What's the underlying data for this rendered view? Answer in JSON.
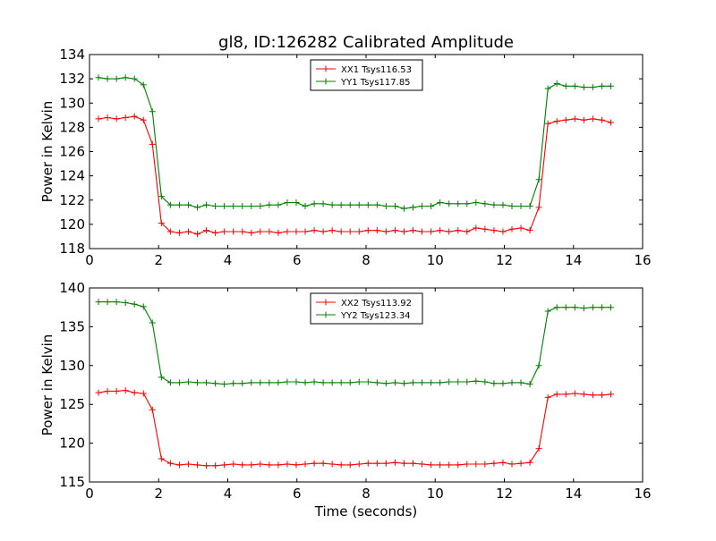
{
  "figure": {
    "title": "gl8, ID:126282 Calibrated Amplitude"
  },
  "chart_data": [
    {
      "type": "line",
      "xlabel": "",
      "ylabel": "Power in Kelvin",
      "xlim": [
        0,
        16
      ],
      "ylim": [
        118,
        134
      ],
      "xticks": [
        0,
        2,
        4,
        6,
        8,
        10,
        12,
        14,
        16
      ],
      "yticks": [
        118,
        120,
        122,
        124,
        126,
        128,
        130,
        132,
        134
      ],
      "grid": false,
      "legend_position": "top-center",
      "x": [
        0.26,
        0.52,
        0.78,
        1.04,
        1.3,
        1.56,
        1.82,
        2.08,
        2.34,
        2.6,
        2.86,
        3.12,
        3.38,
        3.64,
        3.9,
        4.16,
        4.42,
        4.68,
        4.94,
        5.2,
        5.46,
        5.72,
        5.98,
        6.24,
        6.5,
        6.76,
        7.02,
        7.28,
        7.54,
        7.8,
        8.06,
        8.32,
        8.58,
        8.84,
        9.1,
        9.36,
        9.62,
        9.88,
        10.14,
        10.4,
        10.66,
        10.92,
        11.18,
        11.44,
        11.7,
        11.96,
        12.22,
        12.48,
        12.74,
        13.0,
        13.26,
        13.52,
        13.78,
        14.04,
        14.3,
        14.56,
        14.82,
        15.08
      ],
      "series": [
        {
          "name": "XX1 Tsys116.53",
          "color": "#ff0000",
          "values": [
            128.7,
            128.8,
            128.7,
            128.8,
            128.9,
            128.6,
            126.6,
            120.1,
            119.4,
            119.3,
            119.4,
            119.2,
            119.5,
            119.3,
            119.4,
            119.4,
            119.4,
            119.3,
            119.4,
            119.4,
            119.3,
            119.4,
            119.4,
            119.4,
            119.5,
            119.4,
            119.5,
            119.4,
            119.4,
            119.4,
            119.5,
            119.5,
            119.4,
            119.5,
            119.4,
            119.5,
            119.4,
            119.4,
            119.5,
            119.4,
            119.5,
            119.4,
            119.7,
            119.6,
            119.5,
            119.4,
            119.6,
            119.7,
            119.5,
            121.4,
            128.3,
            128.5,
            128.6,
            128.7,
            128.6,
            128.7,
            128.6,
            128.4
          ]
        },
        {
          "name": "YY1 Tsys117.85",
          "color": "#008000",
          "values": [
            132.1,
            132.0,
            132.0,
            132.1,
            132.0,
            131.5,
            129.3,
            122.3,
            121.6,
            121.6,
            121.6,
            121.4,
            121.6,
            121.5,
            121.5,
            121.5,
            121.5,
            121.5,
            121.5,
            121.6,
            121.6,
            121.8,
            121.8,
            121.5,
            121.7,
            121.7,
            121.6,
            121.6,
            121.6,
            121.6,
            121.6,
            121.6,
            121.5,
            121.5,
            121.3,
            121.4,
            121.5,
            121.5,
            121.8,
            121.7,
            121.7,
            121.7,
            121.8,
            121.7,
            121.6,
            121.6,
            121.5,
            121.5,
            121.5,
            123.7,
            131.2,
            131.6,
            131.4,
            131.4,
            131.3,
            131.3,
            131.4,
            131.4
          ]
        }
      ]
    },
    {
      "type": "line",
      "xlabel": "Time (seconds)",
      "ylabel": "Power in Kelvin",
      "xlim": [
        0,
        16
      ],
      "ylim": [
        115,
        140
      ],
      "xticks": [
        0,
        2,
        4,
        6,
        8,
        10,
        12,
        14,
        16
      ],
      "yticks": [
        115,
        120,
        125,
        130,
        135,
        140
      ],
      "grid": false,
      "legend_position": "top-center",
      "x": [
        0.26,
        0.52,
        0.78,
        1.04,
        1.3,
        1.56,
        1.82,
        2.08,
        2.34,
        2.6,
        2.86,
        3.12,
        3.38,
        3.64,
        3.9,
        4.16,
        4.42,
        4.68,
        4.94,
        5.2,
        5.46,
        5.72,
        5.98,
        6.24,
        6.5,
        6.76,
        7.02,
        7.28,
        7.54,
        7.8,
        8.06,
        8.32,
        8.58,
        8.84,
        9.1,
        9.36,
        9.62,
        9.88,
        10.14,
        10.4,
        10.66,
        10.92,
        11.18,
        11.44,
        11.7,
        11.96,
        12.22,
        12.48,
        12.74,
        13.0,
        13.26,
        13.52,
        13.78,
        14.04,
        14.3,
        14.56,
        14.82,
        15.08
      ],
      "series": [
        {
          "name": "XX2 Tsys113.92",
          "color": "#ff0000",
          "values": [
            126.5,
            126.7,
            126.7,
            126.8,
            126.5,
            126.4,
            124.3,
            118.0,
            117.4,
            117.2,
            117.3,
            117.2,
            117.1,
            117.1,
            117.2,
            117.3,
            117.2,
            117.2,
            117.3,
            117.2,
            117.2,
            117.3,
            117.2,
            117.3,
            117.4,
            117.4,
            117.3,
            117.2,
            117.2,
            117.3,
            117.4,
            117.4,
            117.4,
            117.5,
            117.4,
            117.4,
            117.3,
            117.2,
            117.2,
            117.2,
            117.2,
            117.3,
            117.3,
            117.3,
            117.4,
            117.5,
            117.3,
            117.4,
            117.5,
            119.3,
            125.9,
            126.3,
            126.3,
            126.4,
            126.3,
            126.2,
            126.2,
            126.3
          ]
        },
        {
          "name": "YY2 Tsys123.34",
          "color": "#008000",
          "values": [
            138.2,
            138.2,
            138.2,
            138.1,
            137.9,
            137.6,
            135.5,
            128.5,
            127.8,
            127.8,
            127.9,
            127.8,
            127.8,
            127.7,
            127.6,
            127.7,
            127.7,
            127.8,
            127.8,
            127.8,
            127.8,
            127.9,
            127.9,
            127.8,
            127.9,
            127.8,
            127.8,
            127.8,
            127.8,
            127.9,
            127.9,
            127.8,
            127.7,
            127.8,
            127.7,
            127.8,
            127.8,
            127.8,
            127.8,
            127.9,
            127.9,
            127.9,
            128.0,
            127.9,
            127.7,
            127.7,
            127.8,
            127.8,
            127.6,
            130.0,
            137.0,
            137.5,
            137.5,
            137.5,
            137.4,
            137.5,
            137.5,
            137.5
          ]
        }
      ]
    }
  ]
}
